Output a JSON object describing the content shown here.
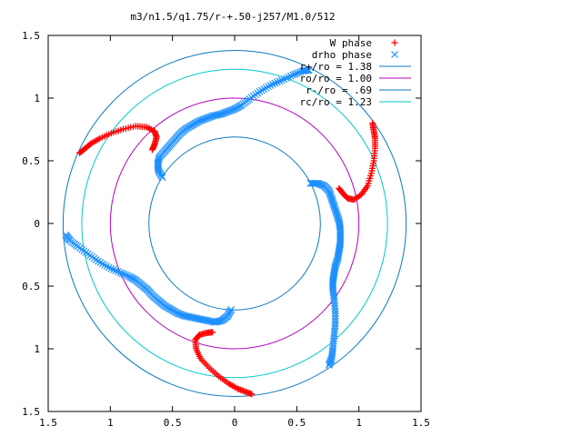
{
  "chart_data": {
    "type": "scatter",
    "title": "m3/n1.5/q1.75/r-+.50-j257/M1.0/512",
    "xlabel": "",
    "ylabel": "",
    "xlim": [
      -1.5,
      1.5
    ],
    "ylim": [
      -1.5,
      1.5
    ],
    "x_ticks": [
      -1.5,
      -1,
      -0.5,
      0,
      0.5,
      1,
      1.5
    ],
    "y_ticks": [
      -1.5,
      -1,
      -0.5,
      0,
      0.5,
      1,
      1.5
    ],
    "x_tick_labels": [
      "1.5",
      "1",
      "0.5",
      "0",
      "0.5",
      "1",
      "1.5"
    ],
    "y_tick_labels": [
      "1.5",
      "1",
      "0.5",
      "0",
      "0.5",
      "1",
      "1.5"
    ],
    "grid": false,
    "legend_position": "top-right",
    "symmetry": 3,
    "series": [
      {
        "name": "W phase",
        "marker": "plus",
        "color": "#ff0000",
        "points": [
          [
            1.11,
            0.8
          ],
          [
            1.12,
            0.74
          ],
          [
            1.13,
            0.68
          ],
          [
            1.13,
            0.6
          ],
          [
            1.12,
            0.5
          ],
          [
            1.1,
            0.4
          ],
          [
            1.07,
            0.3
          ],
          [
            1.02,
            0.23
          ],
          [
            0.96,
            0.19
          ],
          [
            0.91,
            0.2
          ],
          [
            0.87,
            0.24
          ],
          [
            0.84,
            0.28
          ]
        ]
      },
      {
        "name": "drho phase",
        "marker": "cross",
        "color": "#1e90ff",
        "points": [
          [
            0.61,
            0.32
          ],
          [
            0.67,
            0.32
          ],
          [
            0.72,
            0.3
          ],
          [
            0.76,
            0.26
          ],
          [
            0.78,
            0.2
          ],
          [
            0.8,
            0.14
          ],
          [
            0.82,
            0.08
          ],
          [
            0.84,
            0.02
          ],
          [
            0.85,
            -0.04
          ],
          [
            0.85,
            -0.1
          ],
          [
            0.85,
            -0.16
          ],
          [
            0.84,
            -0.22
          ],
          [
            0.83,
            -0.28
          ],
          [
            0.81,
            -0.34
          ],
          [
            0.8,
            -0.4
          ],
          [
            0.79,
            -0.46
          ],
          [
            0.79,
            -0.52
          ],
          [
            0.8,
            -0.6
          ],
          [
            0.81,
            -0.7
          ],
          [
            0.81,
            -0.8
          ],
          [
            0.8,
            -0.9
          ],
          [
            0.79,
            -1.0
          ],
          [
            0.78,
            -1.08
          ],
          [
            0.76,
            -1.13
          ]
        ]
      },
      {
        "name": "r+/ro = 1.38",
        "type": "circle",
        "radius": 1.38,
        "color": "#0a7ac0"
      },
      {
        "name": "ro/ro = 1.00",
        "type": "circle",
        "radius": 1.0,
        "color": "#b000c0"
      },
      {
        "name": "r-/ro = .69",
        "type": "circle",
        "radius": 0.69,
        "color": "#0a7ac0"
      },
      {
        "name": "rc/ro = 1.23",
        "type": "circle",
        "radius": 1.23,
        "color": "#00c8c8"
      }
    ]
  }
}
